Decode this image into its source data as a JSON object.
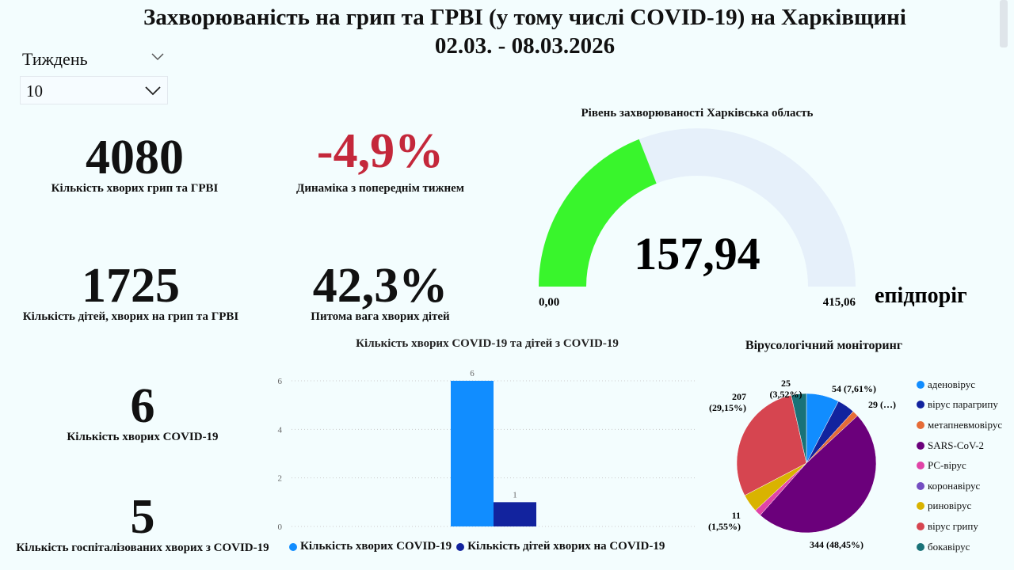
{
  "header": {
    "title": "Захворюваність на грип та ГРВІ (у тому числі COVID-19) на Харківщині",
    "period": "02.03. - 08.03.2026"
  },
  "slicer": {
    "label": "Тиждень",
    "value": "10"
  },
  "kpis": {
    "cases": {
      "value": "4080",
      "label": "Кількість хворих грип та ГРВІ"
    },
    "dynamics": {
      "value": "-4,9%",
      "label": "Динаміка з попереднім тижнем",
      "color": "#C4283B"
    },
    "children": {
      "value": "1725",
      "label": "Кількість дітей, хворих на грип та ГРВІ"
    },
    "children_share": {
      "value": "42,3%",
      "label": "Питома вага хворих дітей"
    },
    "covid": {
      "value": "6",
      "label": "Кількість хворих COVID-19"
    },
    "covid_hosp": {
      "value": "5",
      "label": "Кількість госпіталізованих хворих з COVID-19"
    }
  },
  "gauge": {
    "title": "Рівень захворюваності Харківська область",
    "value": 157.94,
    "value_label": "157,94",
    "min_label": "0,00",
    "max_label": "415,06",
    "min": 0,
    "max": 415.06,
    "threshold_label": "епідпоріг",
    "fill_color": "#39F52C",
    "track_color": "#E6F0FA"
  },
  "chart_data": [
    {
      "type": "bar",
      "title": "Кількість хворих COVID-19 та дітей з COVID-19",
      "ylim": [
        0,
        6
      ],
      "yticks": [
        "0",
        "2",
        "4",
        "6"
      ],
      "series": [
        {
          "name": "Кількість хворих COVID-19",
          "values": [
            6
          ],
          "color": "#118DFF"
        },
        {
          "name": "Кількість дітей хворих на COVID-19",
          "values": [
            1
          ],
          "color": "#12239E"
        }
      ],
      "legend": "bottom"
    },
    {
      "type": "pie",
      "title": "Вірусологічний моніторинг",
      "legend": "right",
      "slices": [
        {
          "name": "аденовірус",
          "value": 54,
          "label": "54 (7,61%)",
          "color": "#118DFF"
        },
        {
          "name": "вірус парагрипу",
          "value": 29,
          "label": "29 (…)",
          "color": "#12239E"
        },
        {
          "name": "метапневмовірус",
          "value": 10,
          "label": "",
          "color": "#E66C37"
        },
        {
          "name": "SARS-CoV-2",
          "value": 344,
          "label": "344 (48,45%)",
          "color": "#6B007B"
        },
        {
          "name": "РС-вірус",
          "value": 11,
          "label": "11 (1,55%)",
          "color": "#E044A7"
        },
        {
          "name": "коронавірус",
          "value": 0,
          "label": "",
          "color": "#744EC2"
        },
        {
          "name": "риновірус",
          "value": 30,
          "label": "",
          "color": "#D9B300"
        },
        {
          "name": "вірус грипу",
          "value": 207,
          "label": "207 (29,15%)",
          "color": "#D64550"
        },
        {
          "name": "бокавірус",
          "value": 25,
          "label": "25 (3,52%)",
          "color": "#197278"
        }
      ]
    }
  ]
}
